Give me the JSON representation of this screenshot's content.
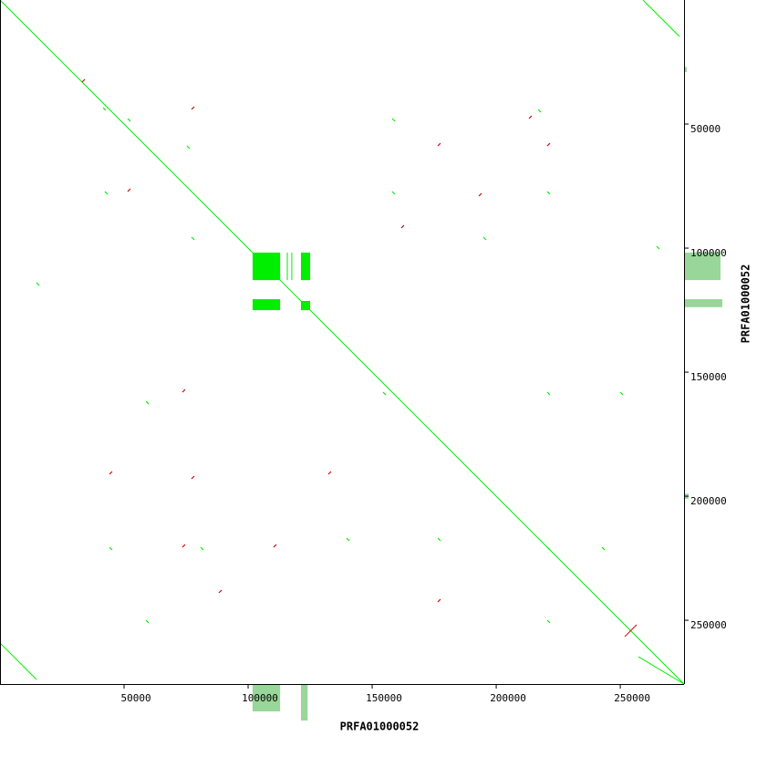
{
  "chart_data": {
    "type": "dotplot",
    "x_label": "PRFA01000052",
    "y_label": "PRFA01000052",
    "xlim": [
      0,
      275700
    ],
    "ylim": [
      0,
      275700
    ],
    "xticks": [
      50000,
      100000,
      150000,
      200000,
      250000
    ],
    "yticks": [
      50000,
      100000,
      150000,
      200000,
      250000
    ],
    "forward_color": "#00ee00",
    "reverse_color": "#cc0000",
    "coverage_color": "#99d699",
    "segments": [
      {
        "x": [
          0,
          275700
        ],
        "y": [
          0,
          275700
        ],
        "strand": "forward"
      },
      {
        "x": [
          0,
          14700
        ],
        "y": [
          259140,
          273850
        ],
        "strand": "forward"
      },
      {
        "x": [
          259140,
          273850
        ],
        "y": [
          0,
          14700
        ],
        "strand": "forward"
      },
      {
        "x": [
          257300,
          275700
        ],
        "y": [
          264700,
          275700
        ],
        "strand": "forward"
      },
      {
        "x": [
          251800,
          256600
        ],
        "y": [
          256600,
          251800
        ],
        "strand": "reverse"
      },
      {
        "x": [
          115800,
          115800
        ],
        "y": [
          101800,
          112900
        ],
        "strand": "forward"
      },
      {
        "x": [
          117600,
          117600
        ],
        "y": [
          101800,
          112900
        ],
        "strand": "forward"
      }
    ],
    "blocks": [
      {
        "x": [
          101800,
          112900
        ],
        "y": [
          101800,
          112900
        ]
      },
      {
        "x": [
          121300,
          125000
        ],
        "y": [
          101800,
          112900
        ]
      },
      {
        "x": [
          101800,
          112900
        ],
        "y": [
          120600,
          125000
        ]
      },
      {
        "x": [
          121300,
          125000
        ],
        "y": [
          121300,
          125000
        ]
      }
    ],
    "forward_dots": [
      [
        41540,
        43380
      ],
      [
        51460,
        47790
      ],
      [
        75360,
        58820
      ],
      [
        158070,
        47790
      ],
      [
        216880,
        44110
      ],
      [
        42270,
        77200
      ],
      [
        158070,
        77200
      ],
      [
        220560,
        77200
      ],
      [
        154390,
        158070
      ],
      [
        220560,
        158070
      ],
      [
        176450,
        216880
      ],
      [
        220560,
        220560
      ],
      [
        44110,
        220560
      ],
      [
        80870,
        220560
      ],
      [
        58820,
        161740
      ],
      [
        249970,
        158070
      ],
      [
        139690,
        216880
      ],
      [
        77200,
        95580
      ],
      [
        194830,
        95580
      ],
      [
        14700,
        113960
      ],
      [
        58820,
        249970
      ],
      [
        220560,
        249970
      ],
      [
        264670,
        99250
      ],
      [
        242620,
        220560
      ]
    ],
    "reverse_dots": [
      [
        33080,
        33080
      ],
      [
        77200,
        44110
      ],
      [
        213210,
        47790
      ],
      [
        176450,
        58820
      ],
      [
        51460,
        77200
      ],
      [
        192990,
        79030
      ],
      [
        73520,
        158070
      ],
      [
        44110,
        191150
      ],
      [
        77200,
        192990
      ],
      [
        110280,
        220560
      ],
      [
        176450,
        242620
      ],
      [
        73520,
        220560
      ],
      [
        161740,
        91900
      ],
      [
        220560,
        58820
      ],
      [
        132340,
        191150
      ],
      [
        88220,
        238940
      ]
    ],
    "coverage_y": [
      {
        "start": 101800,
        "end": 112900,
        "depth": 40
      },
      {
        "start": 120600,
        "end": 123800,
        "depth": 42
      },
      {
        "start": 27000,
        "end": 29000,
        "depth": 3
      },
      {
        "start": 199000,
        "end": 201000,
        "depth": 5
      }
    ],
    "coverage_x": [
      {
        "start": 101800,
        "end": 112900,
        "depth": 30
      },
      {
        "start": 121300,
        "end": 124000,
        "depth": 40
      }
    ]
  }
}
